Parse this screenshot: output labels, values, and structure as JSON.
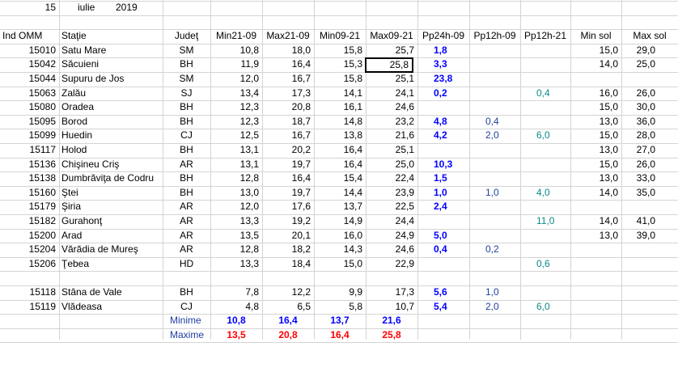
{
  "date": {
    "day": "15",
    "month": "iulie",
    "year": "2019"
  },
  "headers": [
    "Ind OMM",
    "Staţie",
    "Judeţ",
    "Min21-09",
    "Max21-09",
    "Min09-21",
    "Max09-21",
    "Pp24h-09",
    "Pp12h-09",
    "Pp12h-21",
    "Min sol",
    "Max sol"
  ],
  "rows": [
    {
      "id": "15010",
      "station": "Satu Mare",
      "county": "SM",
      "min2109": "10,8",
      "max2109": "18,0",
      "min0921": "15,8",
      "max0921": "25,7",
      "pp24": "1,8",
      "pp12a": "",
      "pp12b": "",
      "minsol": "15,0",
      "maxsol": "29,0"
    },
    {
      "id": "15042",
      "station": "Săcuieni",
      "county": "BH",
      "min2109": "11,9",
      "max2109": "16,4",
      "min0921": "15,3",
      "max0921": "25,8",
      "pp24": "3,3",
      "pp12a": "",
      "pp12b": "",
      "minsol": "14,0",
      "maxsol": "25,0"
    },
    {
      "id": "15044",
      "station": "Supuru de Jos",
      "county": "SM",
      "min2109": "12,0",
      "max2109": "16,7",
      "min0921": "15,8",
      "max0921": "25,1",
      "pp24": "23,8",
      "pp12a": "",
      "pp12b": "",
      "minsol": "",
      "maxsol": ""
    },
    {
      "id": "15063",
      "station": "Zalău",
      "county": "SJ",
      "min2109": "13,4",
      "max2109": "17,3",
      "min0921": "14,1",
      "max0921": "24,1",
      "pp24": "0,2",
      "pp12a": "",
      "pp12b": "0,4",
      "minsol": "16,0",
      "maxsol": "26,0"
    },
    {
      "id": "15080",
      "station": "Oradea",
      "county": "BH",
      "min2109": "12,3",
      "max2109": "20,8",
      "min0921": "16,1",
      "max0921": "24,6",
      "pp24": "",
      "pp12a": "",
      "pp12b": "",
      "minsol": "15,0",
      "maxsol": "30,0"
    },
    {
      "id": "15095",
      "station": "Borod",
      "county": "BH",
      "min2109": "12,3",
      "max2109": "18,7",
      "min0921": "14,8",
      "max0921": "23,2",
      "pp24": "4,8",
      "pp12a": "0,4",
      "pp12b": "",
      "minsol": "13,0",
      "maxsol": "36,0"
    },
    {
      "id": "15099",
      "station": "Huedin",
      "county": "CJ",
      "min2109": "12,5",
      "max2109": "16,7",
      "min0921": "13,8",
      "max0921": "21,6",
      "pp24": "4,2",
      "pp12a": "2,0",
      "pp12b": "6,0",
      "minsol": "15,0",
      "maxsol": "28,0"
    },
    {
      "id": "15117",
      "station": "Holod",
      "county": "BH",
      "min2109": "13,1",
      "max2109": "20,2",
      "min0921": "16,4",
      "max0921": "25,1",
      "pp24": "",
      "pp12a": "",
      "pp12b": "",
      "minsol": "13,0",
      "maxsol": "27,0"
    },
    {
      "id": "15136",
      "station": "Chişineu    Criş",
      "county": "AR",
      "min2109": "13,1",
      "max2109": "19,7",
      "min0921": "16,4",
      "max0921": "25,0",
      "pp24": "10,3",
      "pp12a": "",
      "pp12b": "",
      "minsol": "15,0",
      "maxsol": "26,0"
    },
    {
      "id": "15138",
      "station": "Dumbrăviţa  de Codru",
      "county": "BH",
      "min2109": "12,8",
      "max2109": "16,4",
      "min0921": "15,4",
      "max0921": "22,4",
      "pp24": "1,5",
      "pp12a": "",
      "pp12b": "",
      "minsol": "13,0",
      "maxsol": "33,0"
    },
    {
      "id": "15160",
      "station": "Ştei",
      "county": "BH",
      "min2109": "13,0",
      "max2109": "19,7",
      "min0921": "14,4",
      "max0921": "23,9",
      "pp24": "1,0",
      "pp12a": "1,0",
      "pp12b": "4,0",
      "minsol": "14,0",
      "maxsol": "35,0"
    },
    {
      "id": "15179",
      "station": "Şiria",
      "county": "AR",
      "min2109": "12,0",
      "max2109": "17,6",
      "min0921": "13,7",
      "max0921": "22,5",
      "pp24": "2,4",
      "pp12a": "",
      "pp12b": "",
      "minsol": "",
      "maxsol": ""
    },
    {
      "id": "15182",
      "station": "Gurahonţ",
      "county": "AR",
      "min2109": "13,3",
      "max2109": "19,2",
      "min0921": "14,9",
      "max0921": "24,4",
      "pp24": "",
      "pp12a": "",
      "pp12b": "11,0",
      "minsol": "14,0",
      "maxsol": "41,0"
    },
    {
      "id": "15200",
      "station": "Arad",
      "county": "AR",
      "min2109": "13,5",
      "max2109": "20,1",
      "min0921": "16,0",
      "max0921": "24,9",
      "pp24": "5,0",
      "pp12a": "",
      "pp12b": "",
      "minsol": "13,0",
      "maxsol": "39,0"
    },
    {
      "id": "15204",
      "station": "Vărădia de Mureş",
      "county": "AR",
      "min2109": "12,8",
      "max2109": "18,2",
      "min0921": "14,3",
      "max0921": "24,6",
      "pp24": "0,4",
      "pp12a": "0,2",
      "pp12b": "",
      "minsol": "",
      "maxsol": ""
    },
    {
      "id": "15206",
      "station": "Ţebea",
      "county": "HD",
      "min2109": "13,3",
      "max2109": "18,4",
      "min0921": "15,0",
      "max0921": "22,9",
      "pp24": "",
      "pp12a": "",
      "pp12b": "0,6",
      "minsol": "",
      "maxsol": ""
    }
  ],
  "rows2": [
    {
      "id": "15118",
      "station": "Stâna de Vale",
      "county": "BH",
      "min2109": "7,8",
      "max2109": "12,2",
      "min0921": "9,9",
      "max0921": "17,3",
      "pp24": "5,6",
      "pp12a": "1,0",
      "pp12b": "",
      "minsol": "",
      "maxsol": ""
    },
    {
      "id": "15119",
      "station": "Vlădeasa",
      "county": "CJ",
      "min2109": "4,8",
      "max2109": "6,5",
      "min0921": "5,8",
      "max0921": "10,7",
      "pp24": "5,4",
      "pp12a": "2,0",
      "pp12b": "6,0",
      "minsol": "",
      "maxsol": ""
    }
  ],
  "summary": {
    "min_label": "Minime",
    "max_label": "Maxime",
    "min": [
      "10,8",
      "16,4",
      "13,7",
      "21,6"
    ],
    "max": [
      "13,5",
      "20,8",
      "16,4",
      "25,8"
    ]
  },
  "colors": {
    "grid": "#d4d4d4",
    "precip": "#0000ff",
    "max_summary": "#ff0000",
    "pp12h_09": "#1f3f9f",
    "pp12h_21": "#0a8a8a"
  }
}
